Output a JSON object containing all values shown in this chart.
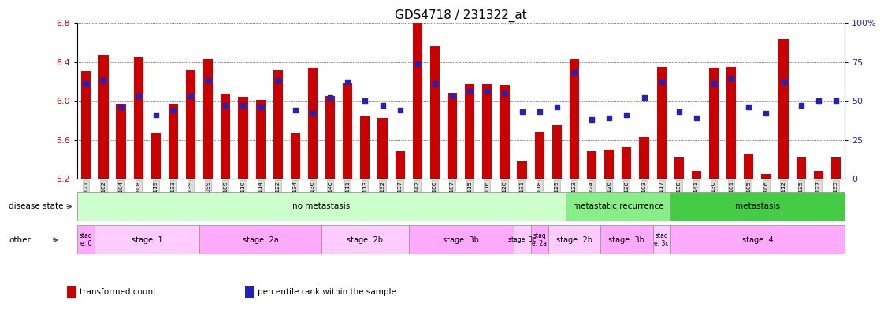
{
  "title": "GDS4718 / 231322_at",
  "samples": [
    "GSM549121",
    "GSM549102",
    "GSM549104",
    "GSM549108",
    "GSM549119",
    "GSM549133",
    "GSM549139",
    "GSM549099",
    "GSM549109",
    "GSM549110",
    "GSM549114",
    "GSM549122",
    "GSM549134",
    "GSM549136",
    "GSM549140",
    "GSM549111",
    "GSM549113",
    "GSM549132",
    "GSM549137",
    "GSM549142",
    "GSM549100",
    "GSM549107",
    "GSM549115",
    "GSM549116",
    "GSM549120",
    "GSM549131",
    "GSM549118",
    "GSM549129",
    "GSM549123",
    "GSM549124",
    "GSM549126",
    "GSM549128",
    "GSM549103",
    "GSM549117",
    "GSM549138",
    "GSM549141",
    "GSM549130",
    "GSM549101",
    "GSM549105",
    "GSM549106",
    "GSM549112",
    "GSM549125",
    "GSM549127",
    "GSM549135"
  ],
  "bar_values": [
    6.31,
    6.47,
    5.97,
    6.45,
    5.67,
    5.97,
    6.32,
    6.43,
    6.07,
    6.04,
    6.01,
    6.32,
    5.67,
    6.34,
    6.05,
    6.18,
    5.84,
    5.82,
    5.48,
    6.83,
    6.56,
    6.08,
    6.17,
    6.17,
    6.16,
    5.38,
    5.68,
    5.75,
    6.43,
    5.48,
    5.5,
    5.52,
    5.63,
    6.35,
    5.42,
    5.28,
    6.34,
    6.35,
    5.45,
    5.25,
    6.64,
    5.42,
    5.28,
    5.42
  ],
  "percentile_values": [
    61,
    63,
    46,
    53,
    41,
    44,
    53,
    63,
    47,
    47,
    46,
    63,
    44,
    42,
    52,
    62,
    50,
    47,
    44,
    74,
    61,
    53,
    56,
    56,
    55,
    43,
    43,
    46,
    68,
    38,
    39,
    41,
    52,
    62,
    43,
    39,
    61,
    64,
    46,
    42,
    62,
    47,
    50,
    50
  ],
  "ylim_left": [
    5.2,
    6.8
  ],
  "ylim_right": [
    0,
    100
  ],
  "yticks_left": [
    5.2,
    5.6,
    6.0,
    6.4,
    6.8
  ],
  "yticks_right": [
    0,
    25,
    50,
    75,
    100
  ],
  "bar_color": "#cc0000",
  "dot_color": "#2222bb",
  "bar_bottom": 5.2,
  "disease_state_groups": [
    {
      "label": "no metastasis",
      "start": 0,
      "end": 28,
      "color": "#ccffcc"
    },
    {
      "label": "metastatic recurrence",
      "start": 28,
      "end": 34,
      "color": "#88ee88"
    },
    {
      "label": "metastasis",
      "start": 34,
      "end": 44,
      "color": "#44cc44"
    }
  ],
  "stage_groups": [
    {
      "label": "stag\ne: 0",
      "start": 0,
      "end": 1,
      "color": "#ffaaff"
    },
    {
      "label": "stage: 1",
      "start": 1,
      "end": 7,
      "color": "#ffccff"
    },
    {
      "label": "stage: 2a",
      "start": 7,
      "end": 14,
      "color": "#ffaaff"
    },
    {
      "label": "stage: 2b",
      "start": 14,
      "end": 19,
      "color": "#ffccff"
    },
    {
      "label": "stage: 3b",
      "start": 19,
      "end": 25,
      "color": "#ffaaff"
    },
    {
      "label": "stage: 3c",
      "start": 25,
      "end": 26,
      "color": "#ffccff"
    },
    {
      "label": "stag\ne: 2a",
      "start": 26,
      "end": 27,
      "color": "#ffaaff"
    },
    {
      "label": "stage: 2b",
      "start": 27,
      "end": 30,
      "color": "#ffccff"
    },
    {
      "label": "stage: 3b",
      "start": 30,
      "end": 33,
      "color": "#ffaaff"
    },
    {
      "label": "stag\ne: 3c",
      "start": 33,
      "end": 34,
      "color": "#ffccff"
    },
    {
      "label": "stage: 4",
      "start": 34,
      "end": 44,
      "color": "#ffaaff"
    }
  ],
  "legend_items": [
    {
      "label": "transformed count",
      "color": "#cc0000"
    },
    {
      "label": "percentile rank within the sample",
      "color": "#2222bb"
    }
  ],
  "title_fontsize": 11,
  "bar_width": 0.55
}
